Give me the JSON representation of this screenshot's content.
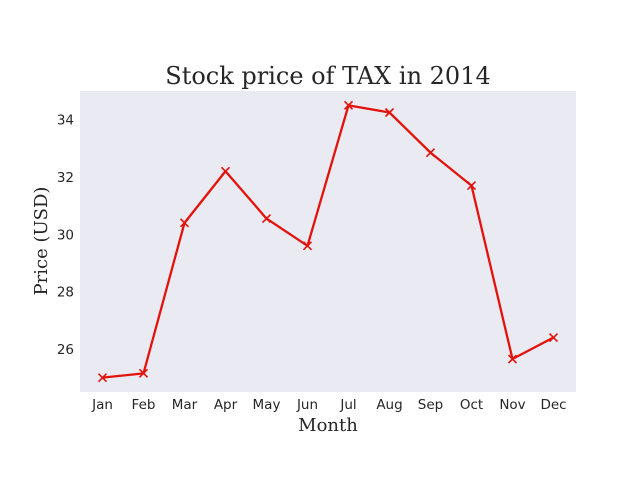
{
  "chart_data": {
    "type": "line",
    "title": "Stock price of TAX in 2014",
    "xlabel": "Month",
    "ylabel": "Price (USD)",
    "categories": [
      "Jan",
      "Feb",
      "Mar",
      "Apr",
      "May",
      "Jun",
      "Jul",
      "Aug",
      "Sep",
      "Oct",
      "Nov",
      "Dec"
    ],
    "series": [
      {
        "values": [
          25.0,
          25.15,
          30.4,
          32.2,
          30.55,
          29.6,
          34.5,
          34.25,
          32.85,
          31.7,
          25.65,
          26.4
        ],
        "color": "#e3120b",
        "marker": "x"
      }
    ],
    "yticks": [
      26,
      28,
      30,
      32,
      34
    ],
    "ylim": [
      24.5,
      35.0
    ],
    "grid": false,
    "background": "#eaeaf2"
  }
}
